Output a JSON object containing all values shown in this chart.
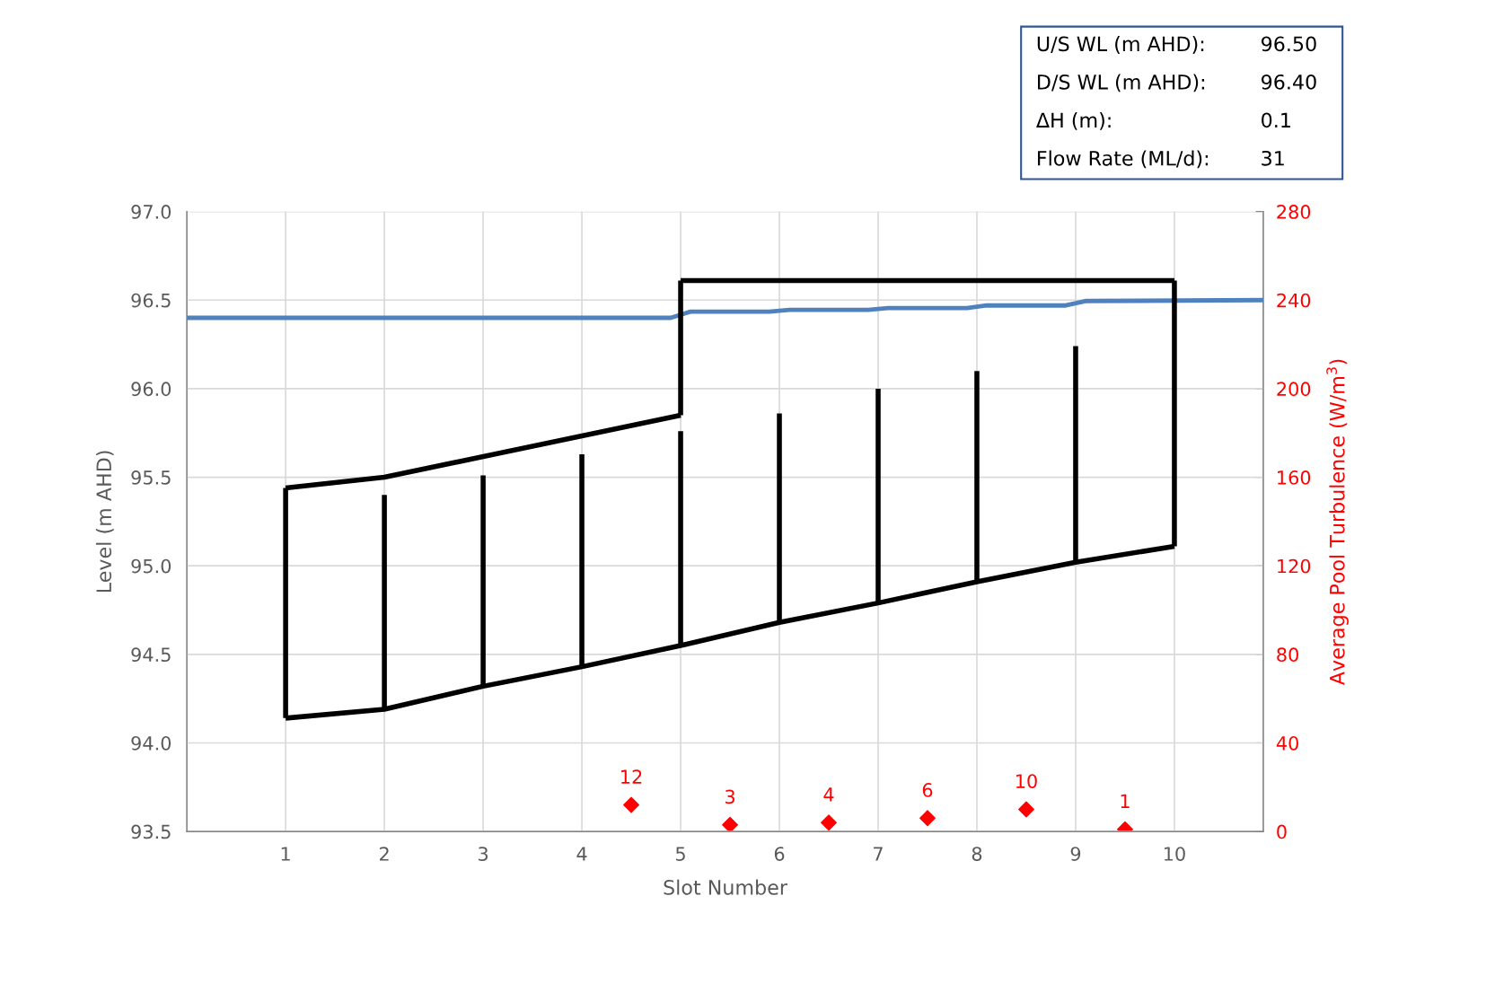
{
  "chart_data": {
    "type": "line",
    "xlabel": "Slot Number",
    "ylabel": "Level (m AHD)",
    "y2label": "Average Pool Turbulence (W/m$^{3}$)",
    "xlim": [
      0,
      10.9
    ],
    "xticks": [
      1,
      2,
      3,
      4,
      5,
      6,
      7,
      8,
      9,
      10
    ],
    "ylim": [
      93.5,
      97.0
    ],
    "yticks": [
      93.5,
      {
        "value": 94.0,
        "label": "94.0"
      },
      94.5,
      {
        "value": 95.0,
        "label": "95.0"
      },
      95.5,
      {
        "value": 96.0,
        "label": "96.0"
      },
      96.5,
      {
        "value": 97.0,
        "label": "97.0"
      }
    ],
    "y2lim": [
      0,
      280
    ],
    "y2ticks": [
      0,
      40,
      80,
      120,
      160,
      200,
      240,
      280
    ],
    "grid": true,
    "annotations": [
      "U/S WL (m AHD):",
      "96.50",
      "D/S WL (m AHD):",
      "96.40",
      "ΔH (m):",
      "0.1",
      "Flow Rate (ML/d):",
      "31"
    ],
    "series": [
      {
        "color": "#4f81bd",
        "x": [
          0,
          4.9,
          5.1,
          5.9,
          6.1,
          6.9,
          7.1,
          7.9,
          8.1,
          8.9,
          9.1,
          10.9
        ],
        "values": [
          96.4,
          96.4,
          96.435,
          96.435,
          96.445,
          96.445,
          96.455,
          96.455,
          96.47,
          96.47,
          96.495,
          96.5
        ]
      },
      {
        "color": "#000000",
        "x": [
          1,
          2,
          3,
          4,
          5,
          6,
          7,
          8,
          9,
          10
        ],
        "values": [
          94.14,
          94.19,
          94.32,
          94.43,
          94.55,
          94.68,
          94.79,
          94.91,
          95.02,
          95.11
        ]
      },
      {
        "color": "#000000",
        "x": [
          1,
          2,
          5
        ],
        "values": [
          95.44,
          95.5,
          95.85
        ]
      },
      {
        "color": "#000000",
        "x": [
          5,
          10
        ],
        "values": [
          96.61,
          96.61
        ]
      },
      {
        "color": "#000000",
        "x": [
          1,
          1
        ],
        "values": [
          94.14,
          95.44
        ]
      },
      {
        "color": "#000000",
        "x": [
          5,
          5
        ],
        "values": [
          95.85,
          96.61
        ]
      },
      {
        "color": "#000000",
        "x": [
          10,
          10
        ],
        "values": [
          95.11,
          96.61
        ]
      },
      {
        "color": "#000000",
        "x": [
          2,
          2
        ],
        "values": [
          94.19,
          95.4
        ]
      },
      {
        "color": "#000000",
        "x": [
          3,
          3
        ],
        "values": [
          94.32,
          95.51
        ]
      },
      {
        "color": "#000000",
        "x": [
          4,
          4
        ],
        "values": [
          94.43,
          95.63
        ]
      },
      {
        "color": "#000000",
        "x": [
          5,
          5
        ],
        "values": [
          94.55,
          95.76
        ]
      },
      {
        "color": "#000000",
        "x": [
          6,
          6
        ],
        "values": [
          94.68,
          95.86
        ]
      },
      {
        "color": "#000000",
        "x": [
          7,
          7
        ],
        "values": [
          94.79,
          96.0
        ]
      },
      {
        "color": "#000000",
        "x": [
          8,
          8
        ],
        "values": [
          94.91,
          96.1
        ]
      },
      {
        "color": "#000000",
        "x": [
          9,
          9
        ],
        "values": [
          95.02,
          96.24
        ]
      },
      {
        "type": "scatter",
        "axis": "y2",
        "color": "#ff0000",
        "marker": "diamond",
        "x": [
          4.5,
          5.5,
          6.5,
          7.5,
          8.5,
          9.5
        ],
        "values": [
          12,
          3,
          4,
          6,
          10,
          1
        ],
        "value_labels": [
          "12",
          "3",
          "4",
          "6",
          "10",
          "1"
        ]
      }
    ]
  }
}
